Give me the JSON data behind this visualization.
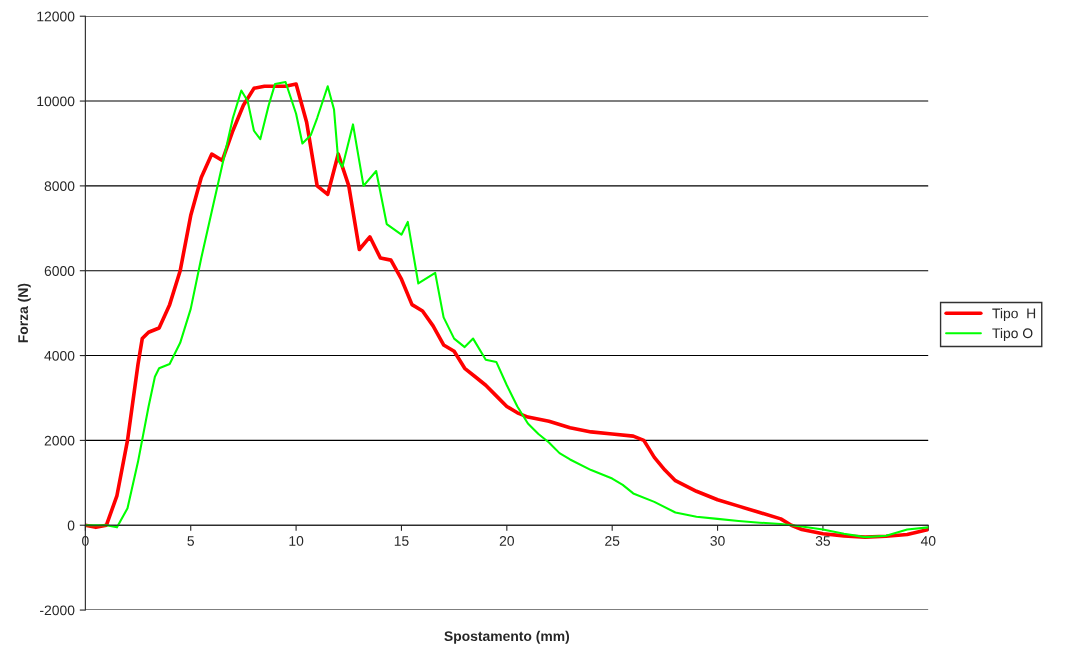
{
  "chart_data": {
    "type": "line",
    "xlabel": "Spostamento (mm)",
    "ylabel": "Forza (N)",
    "xlim": [
      0,
      40
    ],
    "xticks": [
      0,
      5,
      10,
      15,
      20,
      25,
      30,
      35,
      40
    ],
    "ylim": [
      -2000,
      12000
    ],
    "yticks": [
      -2000,
      0,
      2000,
      4000,
      6000,
      8000,
      10000,
      12000
    ],
    "grid": "y",
    "legend": "right",
    "marker": "none",
    "line_style": "solid",
    "series": [
      {
        "name": "Tipo  H",
        "color": "#ff0000",
        "x": [
          0,
          0.5,
          1,
          1.5,
          2,
          2.5,
          2.7,
          3,
          3.5,
          4,
          4.5,
          5,
          5.5,
          6,
          6.5,
          7,
          7.5,
          8,
          8.5,
          9,
          9.5,
          10,
          10.5,
          11,
          11.5,
          12,
          12.5,
          13,
          13.5,
          14,
          14.5,
          15,
          15.5,
          16,
          16.5,
          17,
          17.5,
          18,
          18.5,
          19,
          19.5,
          20,
          20.5,
          21,
          22,
          23,
          24,
          25,
          26,
          26.5,
          27,
          27.5,
          28,
          29,
          30,
          31,
          32,
          33,
          33.5,
          34,
          35,
          36,
          37,
          38,
          39,
          40
        ],
        "values": [
          0,
          -50,
          0,
          700,
          2000,
          3800,
          4400,
          4550,
          4650,
          5200,
          6000,
          7300,
          8200,
          8750,
          8600,
          9300,
          9900,
          10300,
          10350,
          10350,
          10350,
          10400,
          9500,
          8000,
          7800,
          8750,
          8000,
          6500,
          6800,
          6300,
          6250,
          5800,
          5200,
          5050,
          4700,
          4250,
          4100,
          3700,
          3500,
          3300,
          3050,
          2800,
          2650,
          2550,
          2450,
          2300,
          2200,
          2150,
          2100,
          2000,
          1600,
          1300,
          1050,
          800,
          600,
          450,
          300,
          150,
          0,
          -100,
          -200,
          -250,
          -280,
          -260,
          -220,
          -100
        ]
      },
      {
        "name": "Tipo O",
        "color": "#00ff00",
        "x": [
          0,
          1,
          1.5,
          2,
          2.5,
          3,
          3.3,
          3.5,
          4,
          4.5,
          5,
          5.5,
          6,
          6.5,
          7,
          7.4,
          7.7,
          8,
          8.3,
          8.7,
          9,
          9.5,
          10,
          10.3,
          10.7,
          11,
          11.5,
          11.8,
          12,
          12.2,
          12.7,
          13.2,
          13.8,
          14.3,
          15,
          15.3,
          15.8,
          16.6,
          17,
          17.5,
          18,
          18.4,
          19,
          19.5,
          20,
          20.5,
          21,
          21.5,
          22,
          22.5,
          23,
          24,
          25,
          25.5,
          26,
          27,
          28,
          29,
          30,
          31,
          32,
          33,
          34,
          35,
          36,
          37,
          38,
          39,
          40
        ],
        "values": [
          0,
          0,
          -50,
          400,
          1500,
          2800,
          3500,
          3700,
          3800,
          4300,
          5100,
          6300,
          7400,
          8500,
          9600,
          10250,
          10000,
          9300,
          9100,
          9900,
          10400,
          10450,
          9700,
          9000,
          9200,
          9600,
          10350,
          9800,
          8600,
          8450,
          9450,
          8000,
          8350,
          7100,
          6850,
          7150,
          5700,
          5950,
          4900,
          4400,
          4200,
          4400,
          3900,
          3850,
          3300,
          2800,
          2400,
          2150,
          1950,
          1700,
          1550,
          1300,
          1100,
          950,
          750,
          550,
          300,
          200,
          150,
          100,
          60,
          30,
          -30,
          -100,
          -200,
          -280,
          -250,
          -100,
          -50
        ]
      }
    ]
  }
}
